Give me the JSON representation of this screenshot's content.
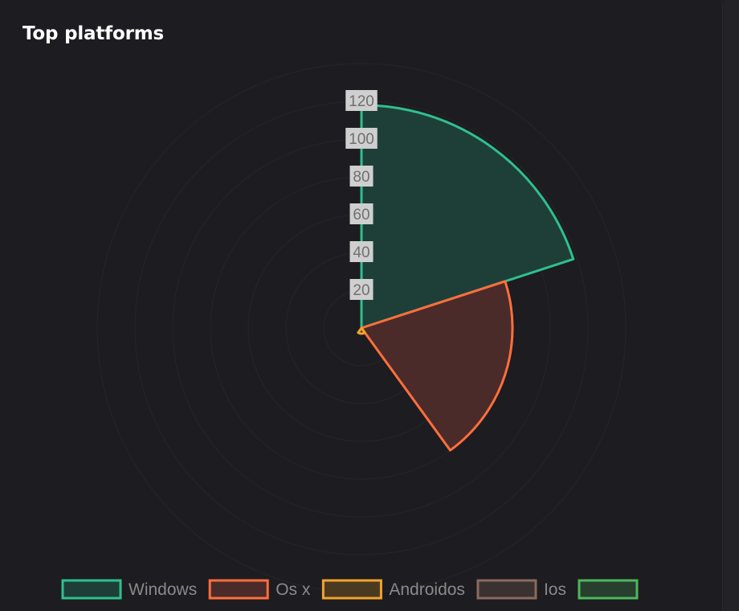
{
  "card": {
    "title": "Top platforms"
  },
  "colors": {
    "background": "#1d1c20",
    "grid": "#26252a",
    "tick_box": "#cfcfcf",
    "tick_text": "#6f6f6f",
    "legend_text": "#8a8a8a"
  },
  "chart_data": {
    "type": "polarArea",
    "categories": [
      "Windows",
      "Os x",
      "Androidos",
      "Ios",
      ""
    ],
    "values": [
      118,
      80,
      3,
      0,
      0
    ],
    "r_ticks": [
      20,
      40,
      60,
      80,
      100,
      120
    ],
    "r_max": 120,
    "r_grid_max": 140,
    "start_angle_deg": 0,
    "grid": true,
    "legend_position": "bottom",
    "series_colors": [
      {
        "border": "#2fc08d",
        "fill": "#1e3f38"
      },
      {
        "border": "#ff6f3c",
        "fill": "#4a2b2a"
      },
      {
        "border": "#f2a32b",
        "fill": "#4a3a22"
      },
      {
        "border": "#8a6a5d",
        "fill": "#3a3230"
      },
      {
        "border": "#4cb85c",
        "fill": "#283e2e"
      }
    ]
  }
}
